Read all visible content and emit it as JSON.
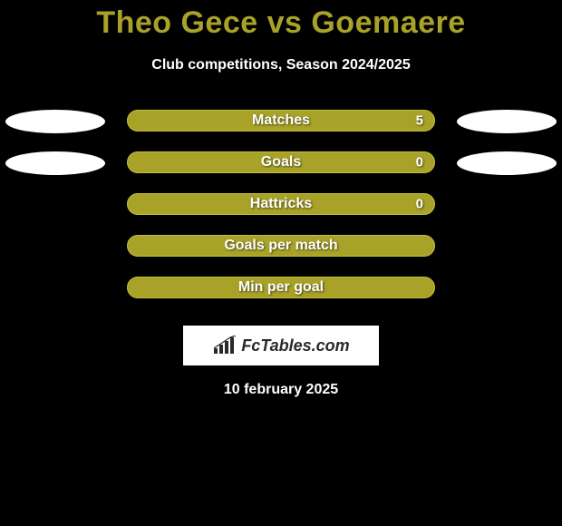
{
  "title": "Theo Gece vs Goemaere",
  "subtitle": "Club competitions, Season 2024/2025",
  "title_color": "#a8a229",
  "bar_color": "#a8a229",
  "text_color": "#ffffff",
  "background_color": "#000000",
  "stats": [
    {
      "label": "Matches",
      "value_left": null,
      "value_right": "5",
      "show_ellipse_left": true,
      "show_ellipse_right": true
    },
    {
      "label": "Goals",
      "value_left": null,
      "value_right": "0",
      "show_ellipse_left": true,
      "show_ellipse_right": true
    },
    {
      "label": "Hattricks",
      "value_left": null,
      "value_right": "0",
      "show_ellipse_left": false,
      "show_ellipse_right": false
    },
    {
      "label": "Goals per match",
      "value_left": null,
      "value_right": null,
      "show_ellipse_left": false,
      "show_ellipse_right": false
    },
    {
      "label": "Min per goal",
      "value_left": null,
      "value_right": null,
      "show_ellipse_left": false,
      "show_ellipse_right": false
    }
  ],
  "logo_text": "FcTables.com",
  "date": "10 february 2025"
}
